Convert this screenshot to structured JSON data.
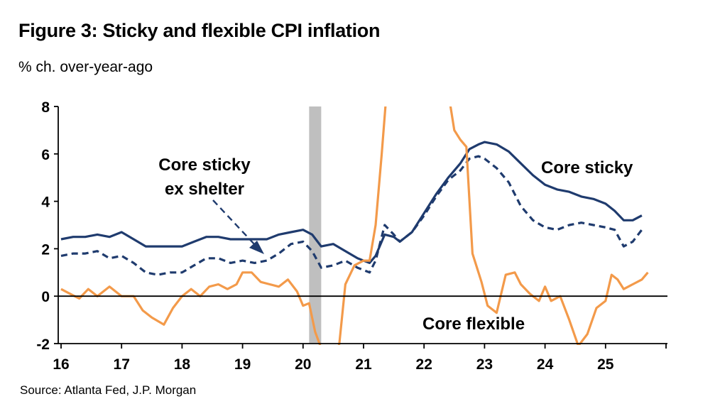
{
  "title": "Figure 3: Sticky and flexible CPI inflation",
  "subtitle": "% ch. over-year-ago",
  "source": "Source: Atlanta Fed, J.P. Morgan",
  "colors": {
    "core_sticky": "#1f3b6e",
    "core_sticky_ex_shelter": "#1f3b6e",
    "core_flexible": "#f39a4a",
    "recession_band": "#bfbfbf",
    "axis": "#000000"
  },
  "chart_data": {
    "type": "line",
    "ylim": [
      -2,
      8
    ],
    "xlim": [
      16,
      26
    ],
    "y_ticks": [
      "8",
      "6",
      "4",
      "2",
      "0",
      "-2"
    ],
    "x_ticks": [
      "16",
      "17",
      "18",
      "19",
      "20",
      "21",
      "22",
      "23",
      "24",
      "25"
    ],
    "grid": false,
    "recession_band": [
      20.1,
      20.3
    ],
    "annotations": [
      {
        "line1": "Core sticky",
        "line2": "ex shelter",
        "series": "Core sticky ex shelter"
      },
      {
        "line1": "Core sticky",
        "series": "Core sticky"
      },
      {
        "line1": "Core flexible",
        "series": "Core flexible"
      }
    ],
    "series": [
      {
        "name": "Core sticky",
        "style": "solid",
        "points": [
          [
            16.0,
            2.4
          ],
          [
            16.2,
            2.5
          ],
          [
            16.4,
            2.5
          ],
          [
            16.6,
            2.6
          ],
          [
            16.8,
            2.5
          ],
          [
            17.0,
            2.7
          ],
          [
            17.2,
            2.4
          ],
          [
            17.4,
            2.1
          ],
          [
            17.6,
            2.1
          ],
          [
            17.8,
            2.1
          ],
          [
            18.0,
            2.1
          ],
          [
            18.2,
            2.3
          ],
          [
            18.4,
            2.5
          ],
          [
            18.6,
            2.5
          ],
          [
            18.8,
            2.4
          ],
          [
            19.0,
            2.4
          ],
          [
            19.2,
            2.4
          ],
          [
            19.4,
            2.4
          ],
          [
            19.6,
            2.6
          ],
          [
            19.8,
            2.7
          ],
          [
            20.0,
            2.8
          ],
          [
            20.15,
            2.6
          ],
          [
            20.3,
            2.1
          ],
          [
            20.5,
            2.2
          ],
          [
            20.7,
            1.9
          ],
          [
            20.9,
            1.6
          ],
          [
            21.1,
            1.4
          ],
          [
            21.2,
            1.7
          ],
          [
            21.35,
            2.6
          ],
          [
            21.5,
            2.5
          ],
          [
            21.6,
            2.3
          ],
          [
            21.8,
            2.7
          ],
          [
            22.0,
            3.5
          ],
          [
            22.2,
            4.3
          ],
          [
            22.4,
            5.0
          ],
          [
            22.6,
            5.6
          ],
          [
            22.75,
            6.2
          ],
          [
            22.9,
            6.4
          ],
          [
            23.0,
            6.5
          ],
          [
            23.2,
            6.4
          ],
          [
            23.4,
            6.1
          ],
          [
            23.6,
            5.6
          ],
          [
            23.8,
            5.1
          ],
          [
            24.0,
            4.7
          ],
          [
            24.2,
            4.5
          ],
          [
            24.4,
            4.4
          ],
          [
            24.6,
            4.2
          ],
          [
            24.8,
            4.1
          ],
          [
            25.0,
            3.9
          ],
          [
            25.15,
            3.6
          ],
          [
            25.3,
            3.2
          ],
          [
            25.45,
            3.2
          ],
          [
            25.6,
            3.4
          ]
        ]
      },
      {
        "name": "Core sticky ex shelter",
        "style": "dashed",
        "points": [
          [
            16.0,
            1.7
          ],
          [
            16.2,
            1.8
          ],
          [
            16.4,
            1.8
          ],
          [
            16.6,
            1.9
          ],
          [
            16.8,
            1.6
          ],
          [
            17.0,
            1.7
          ],
          [
            17.2,
            1.4
          ],
          [
            17.4,
            1.0
          ],
          [
            17.6,
            0.9
          ],
          [
            17.8,
            1.0
          ],
          [
            18.0,
            1.0
          ],
          [
            18.2,
            1.3
          ],
          [
            18.4,
            1.6
          ],
          [
            18.6,
            1.6
          ],
          [
            18.8,
            1.4
          ],
          [
            19.0,
            1.5
          ],
          [
            19.2,
            1.4
          ],
          [
            19.4,
            1.5
          ],
          [
            19.6,
            1.8
          ],
          [
            19.8,
            2.2
          ],
          [
            20.0,
            2.3
          ],
          [
            20.15,
            1.9
          ],
          [
            20.3,
            1.2
          ],
          [
            20.5,
            1.3
          ],
          [
            20.7,
            1.5
          ],
          [
            20.9,
            1.2
          ],
          [
            21.1,
            1.0
          ],
          [
            21.2,
            1.5
          ],
          [
            21.35,
            3.0
          ],
          [
            21.5,
            2.6
          ],
          [
            21.6,
            2.3
          ],
          [
            21.8,
            2.7
          ],
          [
            22.0,
            3.4
          ],
          [
            22.2,
            4.2
          ],
          [
            22.4,
            4.9
          ],
          [
            22.6,
            5.3
          ],
          [
            22.75,
            5.8
          ],
          [
            22.9,
            5.9
          ],
          [
            23.0,
            5.8
          ],
          [
            23.2,
            5.4
          ],
          [
            23.4,
            4.8
          ],
          [
            23.6,
            3.8
          ],
          [
            23.8,
            3.2
          ],
          [
            24.0,
            2.9
          ],
          [
            24.2,
            2.8
          ],
          [
            24.4,
            3.0
          ],
          [
            24.6,
            3.1
          ],
          [
            24.8,
            3.0
          ],
          [
            25.0,
            2.9
          ],
          [
            25.15,
            2.8
          ],
          [
            25.3,
            2.1
          ],
          [
            25.45,
            2.3
          ],
          [
            25.6,
            2.8
          ]
        ]
      },
      {
        "name": "Core flexible",
        "style": "solid",
        "points": [
          [
            16.0,
            0.3
          ],
          [
            16.15,
            0.1
          ],
          [
            16.3,
            -0.1
          ],
          [
            16.45,
            0.3
          ],
          [
            16.6,
            0.0
          ],
          [
            16.8,
            0.4
          ],
          [
            17.0,
            0.0
          ],
          [
            17.2,
            0.0
          ],
          [
            17.35,
            -0.6
          ],
          [
            17.5,
            -0.9
          ],
          [
            17.7,
            -1.2
          ],
          [
            17.85,
            -0.5
          ],
          [
            18.0,
            0.0
          ],
          [
            18.15,
            0.3
          ],
          [
            18.3,
            0.0
          ],
          [
            18.45,
            0.4
          ],
          [
            18.6,
            0.5
          ],
          [
            18.75,
            0.3
          ],
          [
            18.9,
            0.5
          ],
          [
            19.0,
            1.0
          ],
          [
            19.15,
            1.0
          ],
          [
            19.3,
            0.6
          ],
          [
            19.45,
            0.5
          ],
          [
            19.6,
            0.4
          ],
          [
            19.75,
            0.7
          ],
          [
            19.9,
            0.2
          ],
          [
            20.0,
            -0.4
          ],
          [
            20.1,
            -0.3
          ],
          [
            20.2,
            -1.5
          ],
          [
            20.3,
            -2.2
          ],
          [
            20.5,
            -3.0
          ],
          [
            20.6,
            -2.0
          ],
          [
            20.7,
            0.5
          ],
          [
            20.85,
            1.3
          ],
          [
            21.0,
            1.5
          ],
          [
            21.1,
            1.5
          ],
          [
            21.2,
            3.0
          ],
          [
            21.3,
            6.0
          ],
          [
            21.38,
            8.6
          ],
          [
            22.3,
            12.5
          ],
          [
            22.4,
            8.6
          ],
          [
            22.5,
            7.0
          ],
          [
            22.6,
            6.6
          ],
          [
            22.7,
            6.3
          ],
          [
            22.8,
            1.8
          ],
          [
            22.95,
            0.6
          ],
          [
            23.05,
            -0.4
          ],
          [
            23.2,
            -0.7
          ],
          [
            23.35,
            0.9
          ],
          [
            23.5,
            1.0
          ],
          [
            23.6,
            0.5
          ],
          [
            23.75,
            0.1
          ],
          [
            23.9,
            -0.2
          ],
          [
            24.0,
            0.4
          ],
          [
            24.1,
            -0.2
          ],
          [
            24.25,
            0.0
          ],
          [
            24.4,
            -1.0
          ],
          [
            24.55,
            -2.1
          ],
          [
            24.7,
            -1.6
          ],
          [
            24.85,
            -0.5
          ],
          [
            25.0,
            -0.2
          ],
          [
            25.1,
            0.9
          ],
          [
            25.2,
            0.7
          ],
          [
            25.3,
            0.3
          ],
          [
            25.45,
            0.5
          ],
          [
            25.6,
            0.7
          ],
          [
            25.7,
            1.0
          ]
        ]
      }
    ]
  }
}
